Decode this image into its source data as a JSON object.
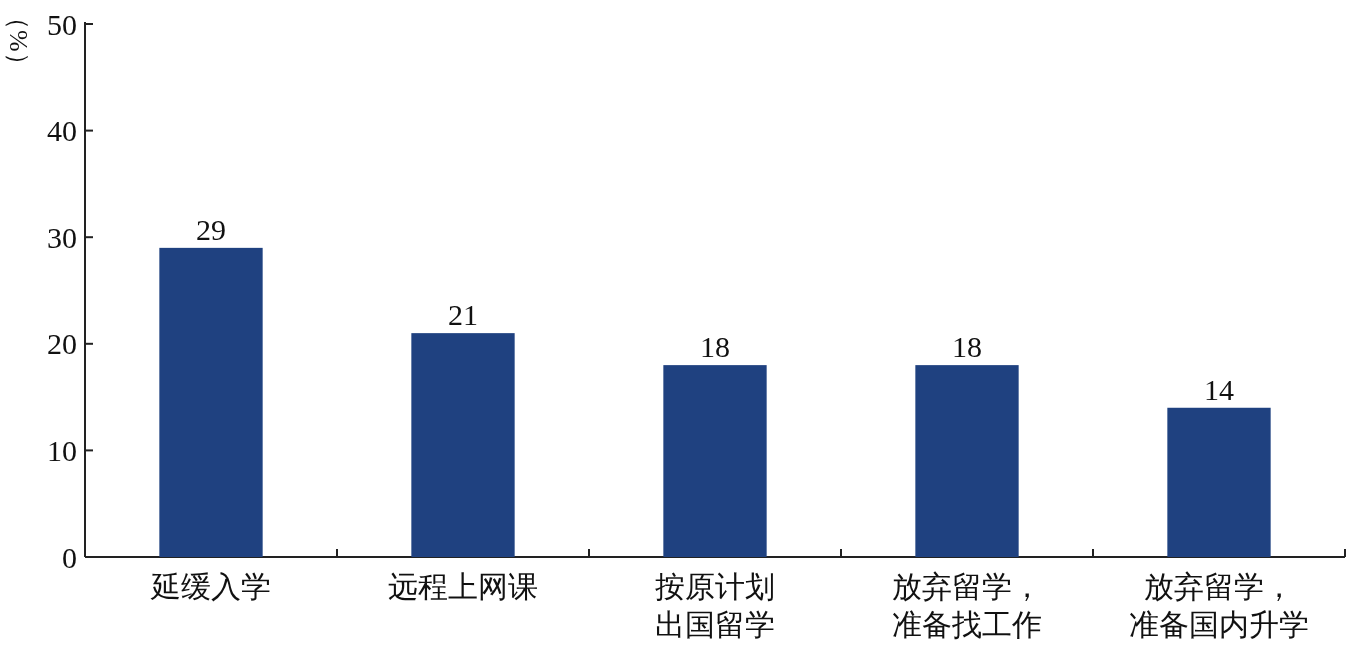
{
  "chart_data": {
    "type": "bar",
    "ylabel": "（%）",
    "categories": [
      "延缓入学",
      "远程上网课",
      "按原计划出国留学",
      "放弃留学，准备找工作",
      "放弃留学，准备国内升学"
    ],
    "values": [
      29,
      21,
      18,
      18,
      14
    ],
    "color": "#1f4180",
    "ylim": [
      0,
      50
    ],
    "yticks": [
      0,
      10,
      20,
      30,
      40,
      50
    ],
    "data_labels": true
  }
}
